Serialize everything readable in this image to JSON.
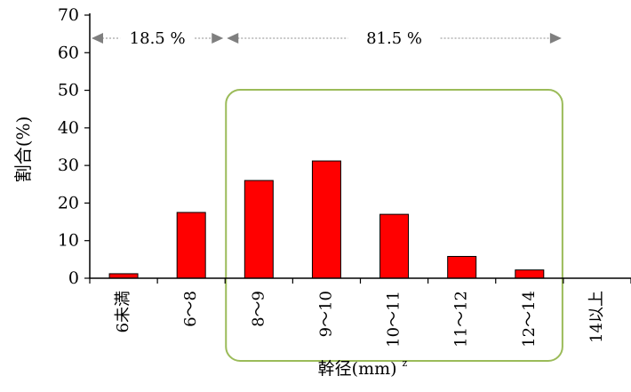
{
  "chart_data": {
    "type": "bar",
    "categories": [
      "6未満",
      "6～8",
      "8～9",
      "9～10",
      "10～11",
      "11～12",
      "12～14",
      "14以上"
    ],
    "values": [
      1.2,
      17.5,
      26,
      31.2,
      17,
      5.8,
      2.2,
      0
    ],
    "ylim": [
      0,
      70
    ],
    "yticks": [
      0,
      10,
      20,
      30,
      40,
      50,
      60,
      70
    ],
    "ylabel": "割合(%)",
    "xlabel": "幹径(mm)",
    "xlabel_sup": "z",
    "bar_color": "#ff0000",
    "highlight_color": "#9bbb59",
    "annotations": [
      {
        "label": "18.5 %",
        "from_category": 0,
        "to_category": 1
      },
      {
        "label": "81.5 %",
        "from_category": 2,
        "to_category": 6
      }
    ],
    "grid": false,
    "legend": "none"
  }
}
